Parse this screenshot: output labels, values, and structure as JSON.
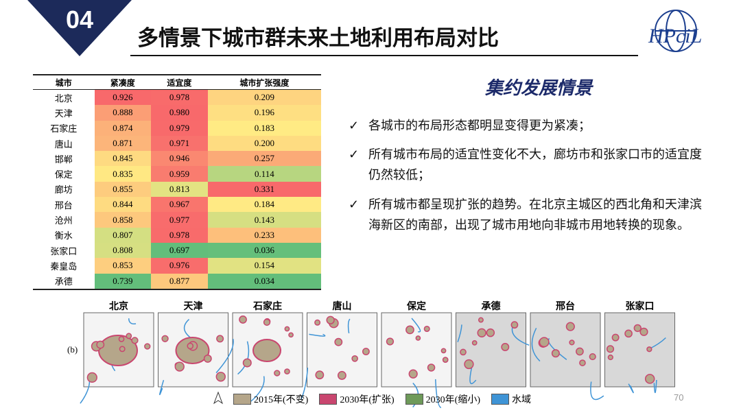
{
  "header": {
    "number": "04",
    "title": "多情景下城市群未来土地利用布局对比"
  },
  "table": {
    "columns": [
      "城市",
      "紧凑度",
      "适宜度",
      "城市扩张强度"
    ],
    "rows": [
      [
        "北京",
        "0.926",
        "0.978",
        "0.209"
      ],
      [
        "天津",
        "0.888",
        "0.980",
        "0.196"
      ],
      [
        "石家庄",
        "0.874",
        "0.979",
        "0.183"
      ],
      [
        "唐山",
        "0.871",
        "0.971",
        "0.200"
      ],
      [
        "邯郸",
        "0.845",
        "0.946",
        "0.257"
      ],
      [
        "保定",
        "0.835",
        "0.959",
        "0.114"
      ],
      [
        "廊坊",
        "0.855",
        "0.813",
        "0.331"
      ],
      [
        "邢台",
        "0.844",
        "0.967",
        "0.184"
      ],
      [
        "沧州",
        "0.858",
        "0.977",
        "0.143"
      ],
      [
        "衡水",
        "0.807",
        "0.978",
        "0.233"
      ],
      [
        "张家口",
        "0.808",
        "0.697",
        "0.036"
      ],
      [
        "秦皇岛",
        "0.853",
        "0.976",
        "0.154"
      ],
      [
        "承德",
        "0.739",
        "0.877",
        "0.034"
      ]
    ]
  },
  "text": {
    "heading": "集约发展情景",
    "bullets": [
      "各城市的布局形态都明显变得更为紧凑；",
      "所有城市布局的适宜性变化不大，廊坊市和张家口市的适宜度仍然较低；",
      "所有城市都呈现扩张的趋势。在北京主城区的西北角和天津滨海新区的南部，出现了城市用地向非城市用地转换的现象。"
    ]
  },
  "maps": {
    "panel_label": "(b)",
    "labels": [
      "北京",
      "天津",
      "石家庄",
      "唐山",
      "保定",
      "承德",
      "邢台",
      "张家口"
    ]
  },
  "legend": [
    {
      "label": "2015年(不变)",
      "color": "#b5a68a"
    },
    {
      "label": "2030年(扩张)",
      "color": "#c9466f"
    },
    {
      "label": "2030年(缩小)",
      "color": "#6e9a5a"
    },
    {
      "label": "水域",
      "color": "#3f94d6"
    }
  ],
  "page_number": "70"
}
